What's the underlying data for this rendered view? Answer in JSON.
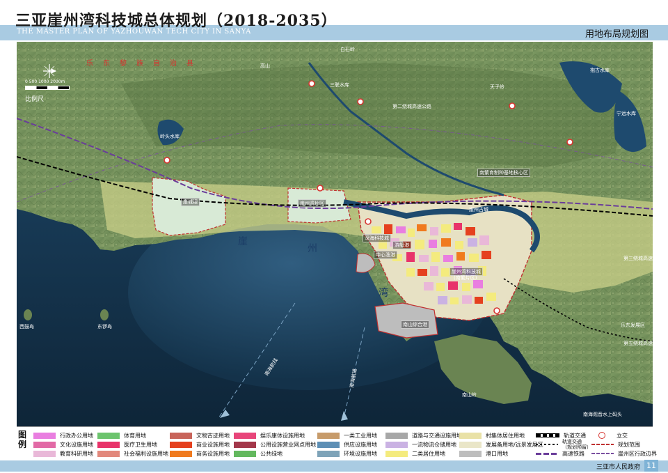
{
  "header": {
    "title_cn": "三亚崖州湾科技城总体规划（2018-2035）",
    "title_en": "THE MASTER PLAN OF YAZHOUWAN TECH CITY IN SANYA",
    "subtitle": "用地布局规划图"
  },
  "map": {
    "scale": {
      "ticks": "0   500 1000        2000m",
      "label": "比例尺"
    },
    "region_label": "乐东黎族自治县",
    "bay_chars": [
      "崖",
      "州",
      "湾"
    ],
    "labels": {
      "lingtou_reservoir": "岭头水库",
      "sanwang_reservoir": "三联水库",
      "baishi": "白石岭",
      "gaoshan": "高山",
      "tianzi": "天子岭",
      "nanshan_north": "南繁育制种基地核心区",
      "yazhou_old_town": "崖州古城",
      "shenzhou_north": "深海科技城",
      "cruise": "游艇港",
      "yazhou_center": "中心渔港",
      "nanfan": "崖州湾科技城",
      "nanfan_sub": "(南繁片区)",
      "nanshan_port": "南山综合港",
      "yacheng": "崖城镇",
      "xigu_island": "西鼓岛",
      "dongluo_island": "东锣岛",
      "nanshan_ling": "南山岭",
      "nanshan_tourism": "南海观音水上码头",
      "jiugong": "九所",
      "shipping_1": "南海航线",
      "shipping_2": "南海航道",
      "reservoir_3": "宁远水库",
      "xianggu": "抱古水库",
      "south_zone": "崖州湾片区",
      "yue_zone": "乐东发展区",
      "road_1": "第二绕城高速公路",
      "road_2": "第三绕城高速公路",
      "road_3": "第五绕城高速公路"
    }
  },
  "legend": {
    "title": "图\n例",
    "items": [
      {
        "label": "行政办公用地",
        "color": "#e97ee0"
      },
      {
        "label": "文化设施用地",
        "color": "#e26aa6"
      },
      {
        "label": "教育科研用地",
        "color": "#e9b8d8"
      },
      {
        "label": "体育用地",
        "color": "#6cc46d"
      },
      {
        "label": "医疗卫生用地",
        "color": "#e8336a"
      },
      {
        "label": "社会福利设施用地",
        "color": "#e2887c"
      },
      {
        "label": "文物古迹用地",
        "color": "#c8645a"
      },
      {
        "label": "商业设施用地",
        "color": "#e5401e"
      },
      {
        "label": "商务设施用地",
        "color": "#f07a1e"
      },
      {
        "label": "娱乐康体设施用地",
        "color": "#e8457a"
      },
      {
        "label": "公用设施营业网点用地",
        "color": "#a3374a"
      },
      {
        "label": "公共绿地",
        "color": "#63b85e"
      },
      {
        "label": "一类工业用地",
        "color": "#c79b6a"
      },
      {
        "label": "供应设施用地",
        "color": "#5d8fb5"
      },
      {
        "label": "环境设施用地",
        "color": "#7ea3b8"
      },
      {
        "label": "道路与交通设施用地",
        "color": "#a7a7a7"
      },
      {
        "label": "一流物流仓储用地",
        "color": "#cab2e3"
      },
      {
        "label": "二类居住用地",
        "color": "#f4eb7e"
      },
      {
        "label": "村集体居住用地",
        "color": "#e9e1a6"
      },
      {
        "label": "发展备用地/远景发展区",
        "color": "#eae6c8"
      },
      {
        "label": "港口用地",
        "color": "#bdbdbd"
      },
      {
        "label": "轨道交通",
        "color": "#000000"
      },
      {
        "label": "轨道交通\n（规划预留）",
        "color": "#000000"
      },
      {
        "label": "高速铁路",
        "color": "#6a3d9a"
      },
      {
        "label": "立交",
        "color": "#d6342f"
      },
      {
        "label": "规划范围",
        "color": "#c03030"
      },
      {
        "label": "崖州区行政边界",
        "color": "#7a4fa0"
      }
    ]
  },
  "footer": {
    "org": "三亚市人民政府",
    "page": "11"
  }
}
